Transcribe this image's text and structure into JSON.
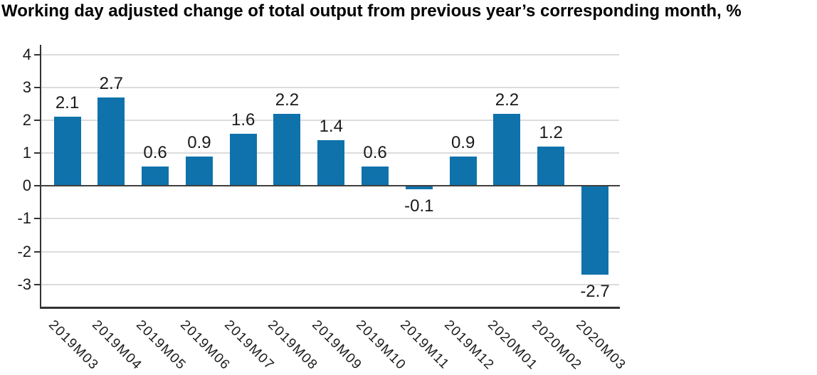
{
  "chart_data": {
    "type": "bar",
    "title": "Working day adjusted change of total output from previous year’s corresponding month, %",
    "categories": [
      "2019M03",
      "2019M04",
      "2019M05",
      "2019M06",
      "2019M07",
      "2019M08",
      "2019M09",
      "2019M10",
      "2019M11",
      "2019M12",
      "2020M01",
      "2020M02",
      "2020M03"
    ],
    "values": [
      2.1,
      2.7,
      0.6,
      0.9,
      1.6,
      2.2,
      1.4,
      0.6,
      -0.1,
      0.9,
      2.2,
      1.2,
      -2.7
    ],
    "data_labels": [
      "2.1",
      "2.7",
      "0.6",
      "0.9",
      "1.6",
      "2.2",
      "1.4",
      "0.6",
      "-0.1",
      "0.9",
      "2.2",
      "1.2",
      "-2.7"
    ],
    "xlabel": "",
    "ylabel": "",
    "ylim": [
      -3.7,
      4.3
    ],
    "yticks": [
      4,
      3,
      2,
      1,
      0,
      -1,
      -2,
      -3
    ],
    "grid": "horizontal-only",
    "legend": false,
    "colors": {
      "bar": "#0f72ab",
      "grid": "#dcdcdc",
      "axis": "#333333",
      "zero_line": "#3f3f3f",
      "text": "#1a1a1a",
      "title": "#000000",
      "background": "#ffffff"
    }
  }
}
